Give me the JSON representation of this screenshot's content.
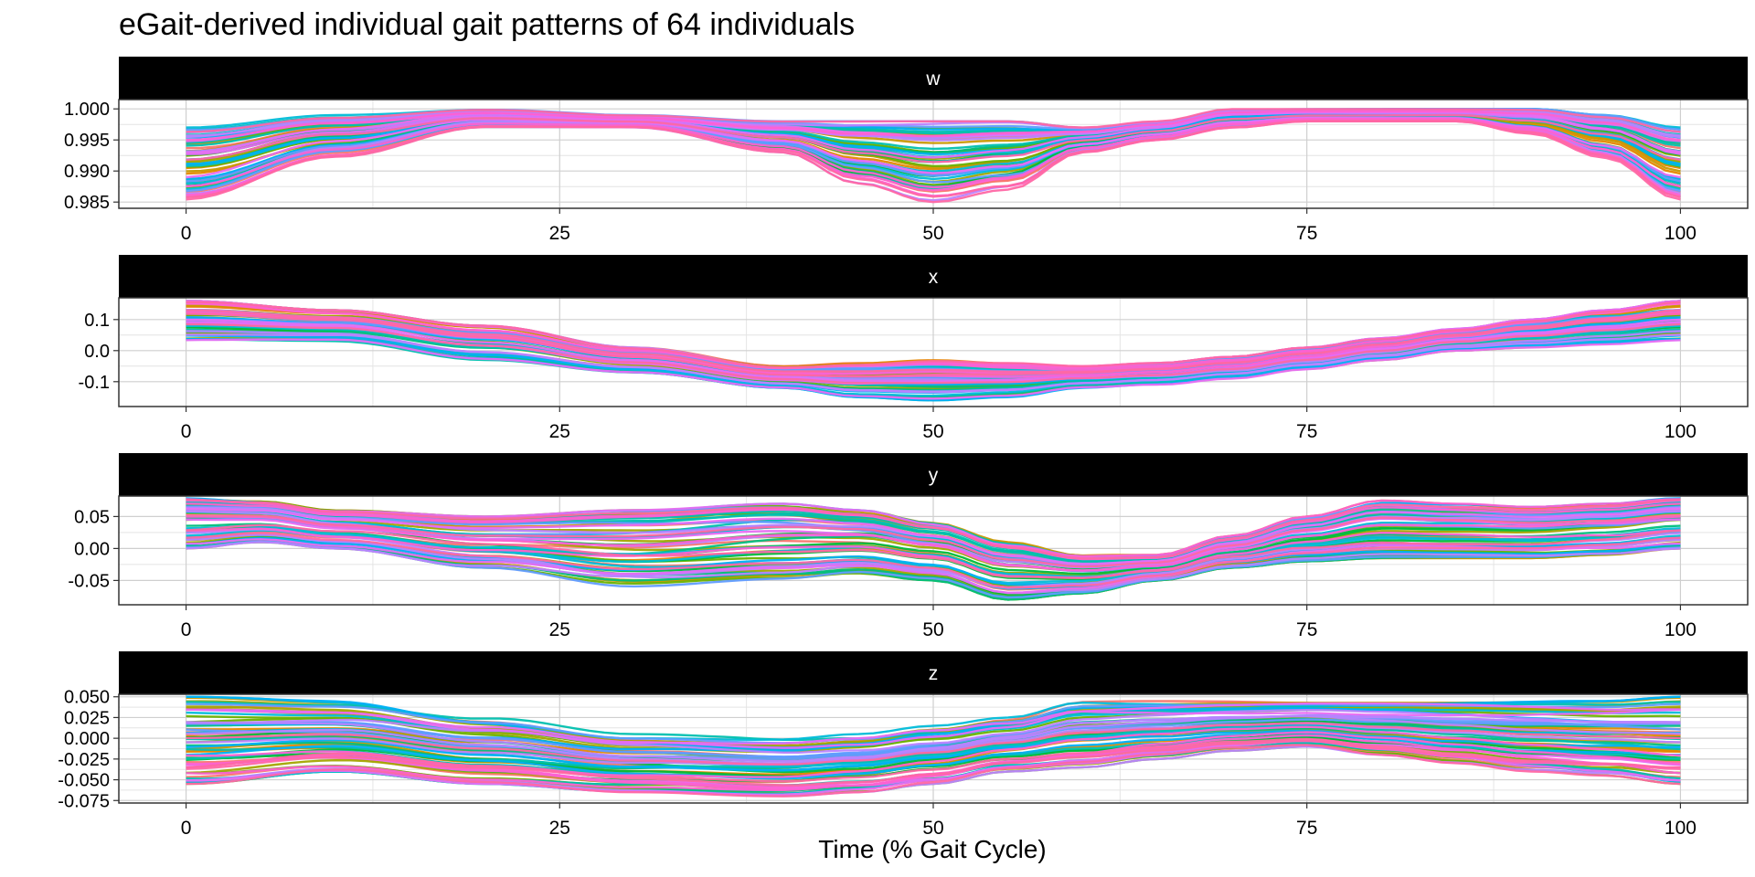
{
  "chart_data": {
    "type": "line",
    "title": "eGait-derived individual gait patterns of 64 individuals",
    "xlabel": "Time (% Gait Cycle)",
    "ylabel": "",
    "xlim": [
      0,
      100
    ],
    "x_ticks": [
      0,
      25,
      50,
      75,
      100
    ],
    "grid": true,
    "legend": "none",
    "n_individuals": 64,
    "palette": [
      "#F8766D",
      "#E58700",
      "#C99800",
      "#A3A500",
      "#6BB100",
      "#00BA38",
      "#00BF7D",
      "#00C0AF",
      "#00BCD8",
      "#00B0F6",
      "#619CFF",
      "#B983FF",
      "#E76BF3",
      "#FD61D1",
      "#FF67A4"
    ],
    "panels": [
      {
        "label": "w",
        "ylim": [
          0.984,
          1.0015
        ],
        "y_ticks": [
          1.0,
          0.995,
          0.99,
          0.985
        ],
        "y_tick_labels": [
          "1.000",
          "0.995",
          "0.990",
          "0.985"
        ],
        "series_envelope": {
          "x": [
            0,
            10,
            20,
            30,
            40,
            45,
            50,
            55,
            60,
            65,
            70,
            75,
            80,
            85,
            90,
            95,
            100
          ],
          "y_min": [
            0.985,
            0.992,
            0.997,
            0.997,
            0.993,
            0.988,
            0.985,
            0.987,
            0.993,
            0.995,
            0.997,
            0.998,
            0.998,
            0.998,
            0.996,
            0.992,
            0.985
          ],
          "y_max": [
            0.997,
            0.999,
            1.0,
            0.999,
            0.998,
            0.998,
            0.998,
            0.998,
            0.997,
            0.998,
            1.0,
            1.0,
            1.0,
            1.0,
            1.0,
            0.999,
            0.997
          ]
        }
      },
      {
        "label": "x",
        "ylim": [
          -0.18,
          0.17
        ],
        "y_ticks": [
          0.1,
          0.0,
          -0.1
        ],
        "y_tick_labels": [
          "0.1",
          "0.0",
          "-0.1"
        ],
        "series_envelope": {
          "x": [
            0,
            10,
            20,
            30,
            40,
            45,
            50,
            55,
            60,
            65,
            70,
            75,
            80,
            85,
            90,
            95,
            100
          ],
          "y_min": [
            0.03,
            0.03,
            -0.03,
            -0.07,
            -0.12,
            -0.15,
            -0.16,
            -0.15,
            -0.12,
            -0.11,
            -0.09,
            -0.06,
            -0.03,
            0.0,
            0.01,
            0.02,
            0.03
          ],
          "y_max": [
            0.16,
            0.13,
            0.08,
            0.01,
            -0.05,
            -0.04,
            -0.03,
            -0.04,
            -0.05,
            -0.04,
            -0.02,
            0.01,
            0.04,
            0.07,
            0.1,
            0.13,
            0.16
          ]
        }
      },
      {
        "label": "y",
        "ylim": [
          -0.088,
          0.082
        ],
        "y_ticks": [
          0.05,
          0.0,
          -0.05
        ],
        "y_tick_labels": [
          "0.05",
          "0.00",
          "-0.05"
        ],
        "series_envelope": {
          "x": [
            0,
            5,
            10,
            20,
            30,
            40,
            45,
            50,
            55,
            60,
            65,
            70,
            75,
            80,
            85,
            90,
            95,
            100
          ],
          "y_min": [
            0.0,
            0.01,
            0.0,
            -0.03,
            -0.06,
            -0.05,
            -0.04,
            -0.05,
            -0.08,
            -0.07,
            -0.05,
            -0.03,
            -0.02,
            -0.015,
            -0.015,
            -0.015,
            -0.01,
            0.0
          ],
          "y_max": [
            0.08,
            0.075,
            0.06,
            0.05,
            0.06,
            0.07,
            0.06,
            0.04,
            0.01,
            -0.01,
            -0.01,
            0.02,
            0.05,
            0.075,
            0.07,
            0.065,
            0.07,
            0.08
          ]
        }
      },
      {
        "label": "z",
        "ylim": [
          -0.078,
          0.053
        ],
        "y_ticks": [
          0.05,
          0.025,
          0.0,
          -0.025,
          -0.05,
          -0.075
        ],
        "y_tick_labels": [
          "0.050",
          "0.025",
          "0.000",
          "-0.025",
          "-0.050",
          "-0.075"
        ],
        "series_envelope": {
          "x": [
            0,
            10,
            20,
            30,
            40,
            45,
            50,
            55,
            60,
            65,
            70,
            75,
            80,
            85,
            90,
            95,
            100
          ],
          "y_min": [
            -0.055,
            -0.04,
            -0.055,
            -0.065,
            -0.07,
            -0.065,
            -0.055,
            -0.04,
            -0.035,
            -0.025,
            -0.015,
            -0.01,
            -0.02,
            -0.03,
            -0.04,
            -0.045,
            -0.055
          ],
          "y_max": [
            0.05,
            0.045,
            0.025,
            0.005,
            0.0,
            0.005,
            0.015,
            0.025,
            0.045,
            0.045,
            0.045,
            0.045,
            0.045,
            0.045,
            0.045,
            0.045,
            0.05
          ]
        }
      }
    ]
  }
}
